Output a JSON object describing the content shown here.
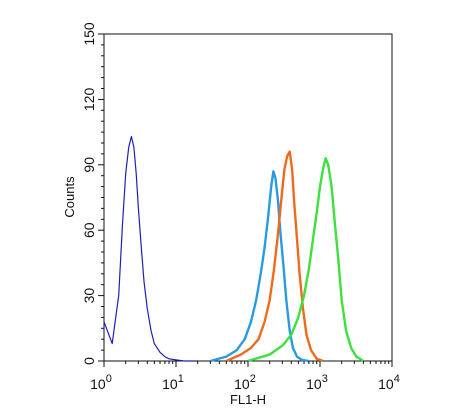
{
  "chart_data": {
    "type": "line",
    "title": "",
    "xlabel": "FL1-H",
    "ylabel": "Counts",
    "x_scale": "log",
    "xlim": [
      1,
      10000
    ],
    "ylim": [
      0,
      150
    ],
    "grid": false,
    "legend": "none",
    "x_ticks": [
      {
        "value": 1,
        "base": "10",
        "exp": "0"
      },
      {
        "value": 10,
        "base": "10",
        "exp": "1"
      },
      {
        "value": 100,
        "base": "10",
        "exp": "2"
      },
      {
        "value": 1000,
        "base": "10",
        "exp": "3"
      },
      {
        "value": 10000,
        "base": "10",
        "exp": "4"
      }
    ],
    "y_ticks": [
      {
        "value": 0,
        "label": "0"
      },
      {
        "value": 30,
        "label": "30"
      },
      {
        "value": 60,
        "label": "60"
      },
      {
        "value": 90,
        "label": "90"
      },
      {
        "value": 120,
        "label": "120"
      },
      {
        "value": 150,
        "label": "150"
      }
    ],
    "series": [
      {
        "color": "#1f1fb4",
        "style": "thin",
        "x": [
          1,
          1.3,
          1.6,
          1.8,
          2.0,
          2.2,
          2.4,
          2.6,
          2.8,
          3.0,
          3.3,
          3.6,
          4.0,
          4.5,
          5.0,
          6.0,
          7.0,
          8.0,
          10,
          13,
          20
        ],
        "y": [
          18,
          8,
          30,
          62,
          86,
          98,
          103,
          98,
          86,
          70,
          52,
          36,
          24,
          14,
          8,
          4,
          2,
          1,
          0.5,
          0,
          0
        ]
      },
      {
        "color": "#2a9be0",
        "style": "thick",
        "x": [
          30,
          50,
          70,
          90,
          110,
          130,
          150,
          170,
          190,
          210,
          225,
          240,
          260,
          280,
          310,
          340,
          380,
          420,
          480,
          560,
          700
        ],
        "y": [
          0,
          2,
          5,
          10,
          18,
          28,
          40,
          52,
          66,
          80,
          87,
          84,
          74,
          60,
          44,
          28,
          14,
          6,
          2,
          0.5,
          0
        ]
      },
      {
        "color": "#ee6b1e",
        "style": "thick",
        "x": [
          50,
          80,
          110,
          140,
          170,
          200,
          230,
          260,
          290,
          320,
          350,
          380,
          410,
          440,
          480,
          520,
          580,
          650,
          750,
          900,
          1100
        ],
        "y": [
          0,
          3,
          6,
          10,
          18,
          28,
          42,
          58,
          74,
          88,
          94,
          96,
          88,
          72,
          56,
          40,
          24,
          12,
          5,
          1,
          0
        ]
      },
      {
        "color": "#3ee03e",
        "style": "thick",
        "x": [
          100,
          200,
          300,
          400,
          500,
          600,
          700,
          800,
          900,
          1000,
          1100,
          1200,
          1300,
          1450,
          1600,
          1800,
          2000,
          2300,
          2700,
          3200,
          4000
        ],
        "y": [
          0,
          3,
          7,
          12,
          20,
          30,
          42,
          56,
          68,
          80,
          88,
          93,
          90,
          80,
          64,
          46,
          28,
          14,
          6,
          2,
          0
        ]
      }
    ]
  }
}
